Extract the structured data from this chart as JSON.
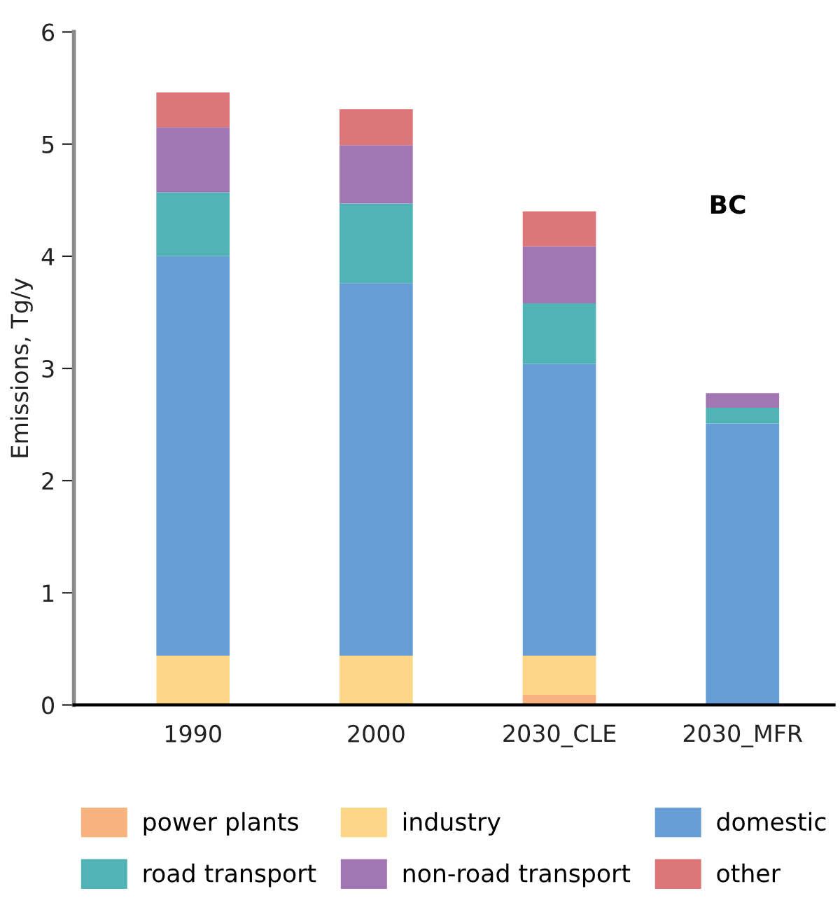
{
  "chart_data": {
    "type": "bar",
    "stacked": true,
    "ylabel": "Emissions, Tg/y",
    "annotations": [
      "BC"
    ],
    "categories": [
      "1990",
      "2000",
      "2030_CLE",
      "2030_MFR"
    ],
    "series": [
      {
        "name": "power plants",
        "color": "#f7b27e",
        "values": [
          0,
          0,
          0.09,
          0
        ]
      },
      {
        "name": "industry",
        "color": "#fcd686",
        "values": [
          0.44,
          0.44,
          0.35,
          0
        ]
      },
      {
        "name": "domestic",
        "color": "#659dd4",
        "values": [
          3.56,
          3.32,
          2.6,
          2.51
        ]
      },
      {
        "name": "road transport",
        "color": "#51b3b5",
        "values": [
          0.57,
          0.71,
          0.54,
          0.14
        ]
      },
      {
        "name": "non-road transport",
        "color": "#a176b2",
        "values": [
          0.58,
          0.52,
          0.51,
          0.13
        ]
      },
      {
        "name": "other",
        "color": "#dc7678",
        "values": [
          0.31,
          0.32,
          0.31,
          0
        ]
      }
    ],
    "ylim": [
      0,
      6
    ],
    "yticks": [
      0,
      1,
      2,
      3,
      4,
      5,
      6
    ],
    "grid": false,
    "legend": "bottom"
  }
}
